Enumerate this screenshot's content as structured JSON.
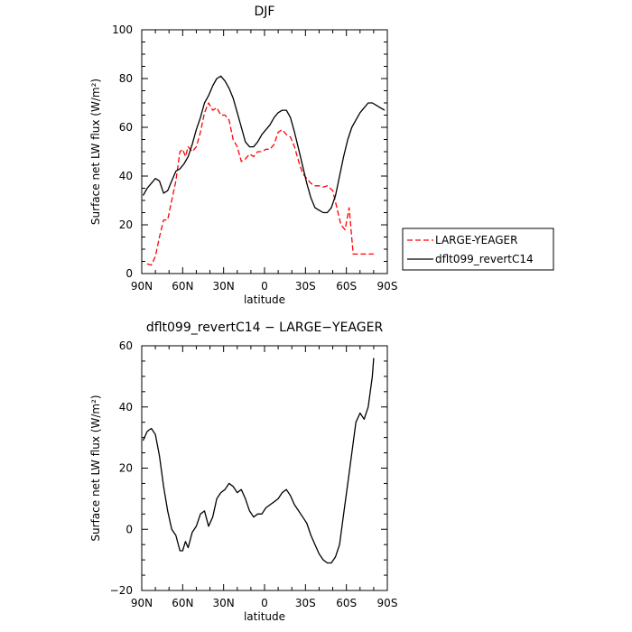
{
  "chart_data": [
    {
      "type": "line",
      "title": "DJF",
      "xlabel": "latitude",
      "ylabel": "Surface net LW flux (W/m²)",
      "xlim": [
        90,
        -90
      ],
      "ylim": [
        0,
        100
      ],
      "x_ticks": [
        90,
        60,
        30,
        0,
        -30,
        -60,
        -90
      ],
      "x_tick_labels": [
        "90N",
        "60N",
        "30N",
        "0",
        "30S",
        "60S",
        "90S"
      ],
      "y_ticks": [
        0,
        20,
        40,
        60,
        80,
        100
      ],
      "y_tick_labels": [
        "0",
        "20",
        "40",
        "60",
        "80",
        "100"
      ],
      "legend": "outside-right",
      "series": [
        {
          "name": "LARGE-YEAGER",
          "color": "#ff0000",
          "dash": "dashed",
          "x": [
            86,
            83,
            80,
            77,
            74,
            71,
            68,
            65,
            62,
            60,
            58,
            56,
            53,
            50,
            47,
            44,
            41,
            38,
            35,
            32,
            29,
            26,
            23,
            20,
            17,
            14,
            11,
            8,
            5,
            2,
            -1,
            -4,
            -7,
            -10,
            -13,
            -16,
            -19,
            -22,
            -25,
            -28,
            -31,
            -34,
            -37,
            -40,
            -43,
            -46,
            -50,
            -53,
            -56,
            -59,
            -62,
            -65,
            -68,
            -71,
            -74,
            -77,
            -80
          ],
          "values": [
            4,
            3.5,
            7,
            15,
            22,
            22,
            30,
            38,
            50,
            51,
            48,
            52,
            50,
            52,
            58,
            66,
            70,
            67,
            68,
            65,
            65,
            63,
            55,
            52,
            46,
            47,
            49,
            48,
            50,
            50,
            51,
            51,
            53,
            58,
            59,
            57,
            56,
            52,
            46,
            41,
            39,
            37,
            36,
            36,
            35.5,
            36,
            34,
            27,
            20,
            18,
            27,
            8,
            8,
            8,
            8,
            8,
            8
          ]
        },
        {
          "name": "dflt099_revertC14",
          "color": "#000000",
          "dash": "solid",
          "x": [
            89,
            86,
            83,
            80,
            77,
            74,
            71,
            68,
            65,
            62,
            59,
            56,
            53,
            50,
            47,
            44,
            41,
            38,
            35,
            32,
            29,
            26,
            23,
            20,
            17,
            14,
            11,
            8,
            5,
            2,
            -1,
            -4,
            -7,
            -10,
            -13,
            -16,
            -19,
            -22,
            -25,
            -28,
            -31,
            -34,
            -37,
            -40,
            -43,
            -46,
            -49,
            -52,
            -55,
            -58,
            -61,
            -64,
            -67,
            -70,
            -73,
            -76,
            -79,
            -82,
            -85,
            -88
          ],
          "values": [
            32,
            35,
            37,
            39,
            38,
            33,
            34,
            38,
            42,
            43,
            45,
            48,
            53,
            59,
            64,
            70,
            73,
            77,
            80,
            81,
            79,
            76,
            72,
            66,
            60,
            54,
            52,
            52,
            54,
            57,
            59,
            61,
            64,
            66,
            67,
            67,
            64,
            58,
            51,
            44,
            37,
            31,
            27,
            26,
            25,
            25,
            27,
            32,
            40,
            48,
            55,
            60,
            63,
            66,
            68,
            70,
            70,
            69,
            68,
            67
          ]
        }
      ]
    },
    {
      "type": "line",
      "title": "dflt099_revertC14 − LARGE−YEAGER",
      "xlabel": "latitude",
      "ylabel": "Surface net LW flux (W/m²)",
      "xlim": [
        90,
        -90
      ],
      "ylim": [
        -20,
        60
      ],
      "x_ticks": [
        90,
        60,
        30,
        0,
        -30,
        -60,
        -90
      ],
      "x_tick_labels": [
        "90N",
        "60N",
        "30N",
        "0",
        "30S",
        "60S",
        "90S"
      ],
      "y_ticks": [
        -20,
        0,
        20,
        40,
        60
      ],
      "y_tick_labels": [
        "−20",
        "0",
        "20",
        "40",
        "60"
      ],
      "series": [
        {
          "color": "#000000",
          "dash": "solid",
          "x": [
            89,
            86,
            83,
            80,
            77,
            74,
            71,
            68,
            65,
            62,
            60,
            58,
            56,
            53,
            50,
            47,
            44,
            41,
            38,
            35,
            32,
            29,
            26,
            23,
            20,
            17,
            14,
            11,
            8,
            5,
            2,
            -1,
            -4,
            -7,
            -10,
            -13,
            -16,
            -19,
            -22,
            -25,
            -28,
            -31,
            -34,
            -37,
            -40,
            -43,
            -46,
            -49,
            -52,
            -55,
            -58,
            -61,
            -64,
            -67,
            -70,
            -73,
            -76,
            -79,
            -80
          ],
          "values": [
            29,
            32,
            33,
            31,
            24,
            14,
            6,
            0,
            -2,
            -7,
            -7,
            -4,
            -6,
            -1,
            1,
            5,
            6,
            1,
            4,
            10,
            12,
            13,
            15,
            14,
            12,
            13,
            10,
            6,
            4,
            5,
            5,
            7,
            8,
            9,
            10,
            12,
            13,
            11,
            8,
            6,
            4,
            2,
            -2,
            -5,
            -8,
            -10,
            -11,
            -11,
            -9,
            -5,
            5,
            15,
            25,
            35,
            38,
            36,
            40,
            50,
            56
          ]
        }
      ]
    }
  ]
}
